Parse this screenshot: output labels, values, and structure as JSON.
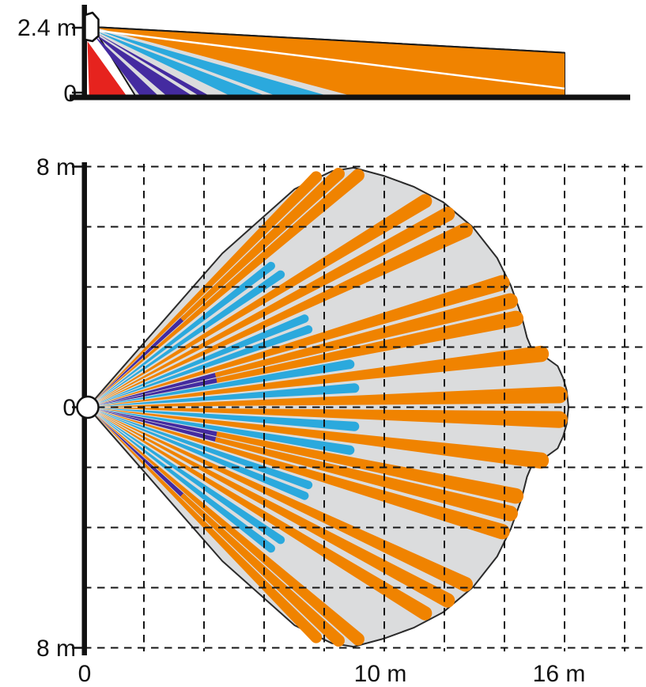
{
  "diagram_type": "pir-detector-coverage-pattern",
  "colors": {
    "long": "#F08300",
    "mid": "#2BA9DD",
    "short": "#442BA0",
    "creep": "#E6231E",
    "field": "#DBDCDD",
    "outline": "#1A1A1A",
    "grid": "#151515",
    "divider": "#FFFFFF"
  },
  "side": {
    "labels": {
      "height": "2.4 m",
      "zero": "0"
    },
    "mount_height_m": 2.4,
    "max_range_m": 16,
    "silhouette": [
      [
        0.3,
        2.33
      ],
      [
        16,
        1.47
      ],
      [
        16,
        0
      ],
      [
        1.74,
        0
      ]
    ],
    "top_edge": [
      [
        0.3,
        2.33
      ],
      [
        16,
        1.47
      ]
    ],
    "divider": [
      [
        0.5,
        2.2
      ],
      [
        16,
        0.28
      ]
    ],
    "beams": [
      {
        "color": "creep",
        "poly": [
          [
            0.12,
            1.85
          ],
          [
            1.45,
            0
          ],
          [
            0.18,
            0
          ]
        ]
      },
      {
        "color": "short",
        "poly": [
          [
            0.3,
            2.1
          ],
          [
            2.52,
            0
          ],
          [
            1.9,
            0
          ]
        ]
      },
      {
        "color": "short",
        "poly": [
          [
            0.3,
            2.14
          ],
          [
            3.67,
            0
          ],
          [
            2.8,
            0
          ]
        ]
      },
      {
        "color": "short",
        "poly": [
          [
            0.32,
            2.18
          ],
          [
            4.25,
            0
          ],
          [
            3.9,
            0
          ]
        ]
      },
      {
        "color": "mid",
        "poly": [
          [
            0.35,
            2.21
          ],
          [
            6.15,
            0
          ],
          [
            4.95,
            0
          ]
        ]
      },
      {
        "color": "mid",
        "poly": [
          [
            0.37,
            2.25
          ],
          [
            8.25,
            0
          ],
          [
            6.5,
            0
          ]
        ]
      },
      {
        "color": "long",
        "poly": [
          [
            0.42,
            2.3
          ],
          [
            16,
            1.45
          ],
          [
            16,
            0
          ],
          [
            9.05,
            0
          ]
        ]
      }
    ]
  },
  "plan": {
    "labels": {
      "y_top": "8 m",
      "y_mid": "0",
      "y_bottom": "8 m",
      "x_zero": "0",
      "x_ten": "10 m",
      "x_sixteen": "16 m"
    },
    "grid_step_m": 2,
    "half_width_m": 8,
    "max_range_m": 16,
    "edge_angle_deg": 48.8,
    "finger_half_width_deg": 1.02,
    "boundary_profile": [
      [
        48.8,
        6.8
      ],
      [
        46.5,
        10.0
      ],
      [
        44,
        11.3
      ],
      [
        42,
        11.9
      ],
      [
        38,
        12.5
      ],
      [
        34,
        13.1
      ],
      [
        30,
        13.65
      ],
      [
        25,
        14.15
      ],
      [
        20,
        14.5
      ],
      [
        16,
        14.65
      ],
      [
        12,
        14.75
      ],
      [
        9,
        14.8
      ],
      [
        7.5,
        14.9
      ],
      [
        6.3,
        15.3
      ],
      [
        5,
        15.7
      ],
      [
        3.5,
        15.85
      ],
      [
        2,
        15.95
      ],
      [
        0,
        16.0
      ]
    ],
    "fingers": [
      [
        1.5,
        "L",
        15.7
      ],
      [
        4.1,
        "M",
        8.9
      ],
      [
        6.7,
        "L",
        15.2
      ],
      [
        9.3,
        "M",
        8.85
      ],
      [
        11.7,
        "SL",
        14.55,
        4.5
      ],
      [
        14.1,
        "SL",
        14.5,
        4.5
      ],
      [
        16.7,
        "L",
        14.4
      ],
      [
        19.4,
        "M",
        7.8
      ],
      [
        22.2,
        "M",
        7.8
      ],
      [
        25.1,
        "L",
        13.9
      ],
      [
        28.2,
        "L",
        13.6
      ],
      [
        31.4,
        "L",
        13.15
      ],
      [
        34.5,
        "M",
        7.8
      ],
      [
        37.6,
        "M",
        7.7
      ],
      [
        40.6,
        "L",
        11.85
      ],
      [
        42.9,
        "SL",
        11.4,
        4.4
      ],
      [
        45.2,
        "L",
        10.8
      ]
    ],
    "mirrored": true
  }
}
